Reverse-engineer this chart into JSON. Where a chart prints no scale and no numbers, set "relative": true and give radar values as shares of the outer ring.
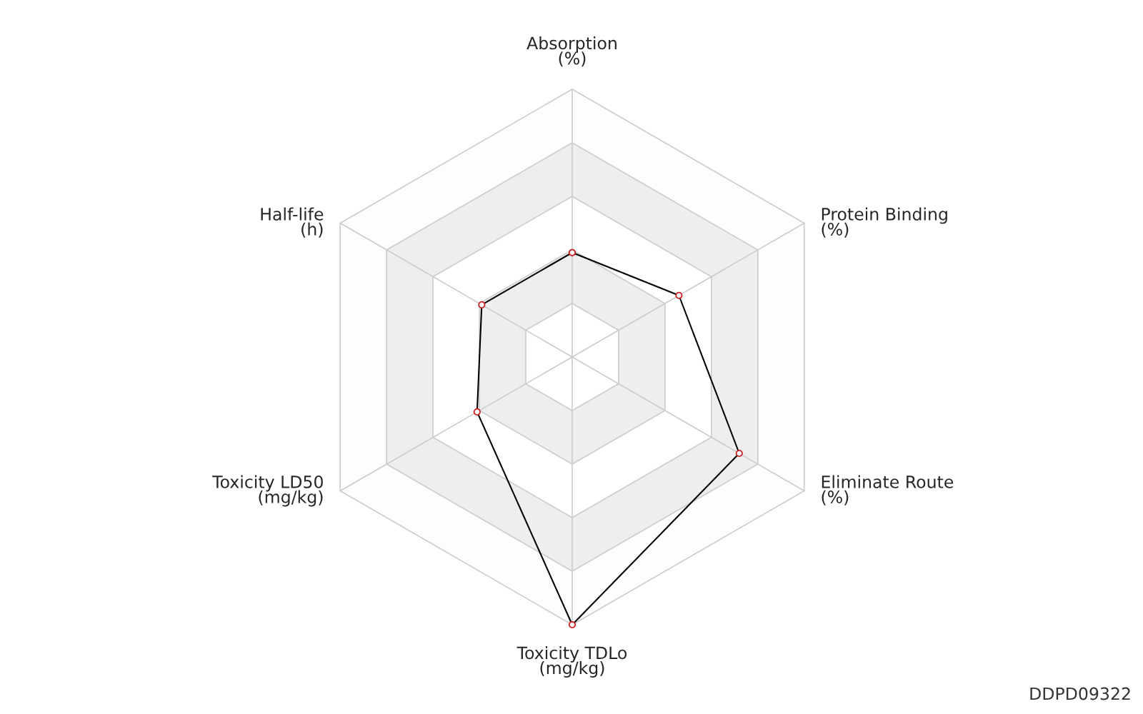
{
  "chart_data": {
    "type": "radar",
    "relative": true,
    "grid": true,
    "marker": "circle",
    "line_style": "solid",
    "categories": [
      "Absorption\n(%)",
      "Protein Binding\n(%)",
      "Eliminate Route\n(%)",
      "Toxicity TDLo\n(mg/kg)",
      "Toxicity LD50\n(mg/kg)",
      "Half-life\n(h)"
    ],
    "series": [
      {
        "color": "#000000",
        "values": [
          0.39,
          0.46,
          0.72,
          1.0,
          0.41,
          0.39
        ]
      }
    ],
    "annotations": [
      "DDPD09322"
    ]
  }
}
